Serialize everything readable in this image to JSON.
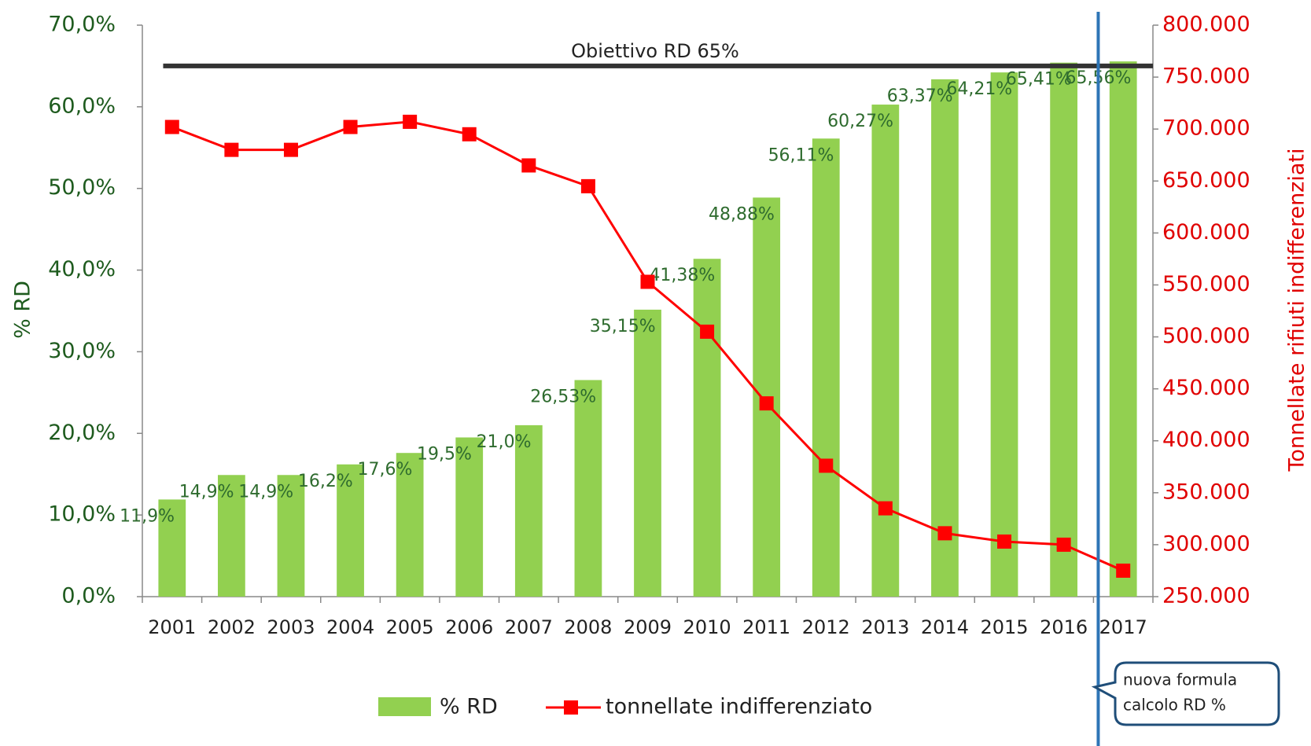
{
  "chart_data": {
    "type": "bar",
    "categories": [
      "2001",
      "2002",
      "2003",
      "2004",
      "2005",
      "2006",
      "2007",
      "2008",
      "2009",
      "2010",
      "2011",
      "2012",
      "2013",
      "2014",
      "2015",
      "2016",
      "2017"
    ],
    "series": [
      {
        "name": "% RD",
        "type": "bar",
        "color": "#92d050",
        "values": [
          11.9,
          14.9,
          14.9,
          16.2,
          17.6,
          19.5,
          21.0,
          26.53,
          35.15,
          41.38,
          48.88,
          56.11,
          60.27,
          63.37,
          64.21,
          65.41,
          65.56
        ],
        "value_labels": [
          "11,9%",
          "14,9%",
          "14,9%",
          "16,2%",
          "17,6%",
          "19,5%",
          "21,0%",
          "26,53%",
          "35,15%",
          "41,38%",
          "48,88%",
          "56,11%",
          "60,27%",
          "63,37%",
          "64,21%",
          "65,41%",
          "65,56%"
        ]
      },
      {
        "name": "tonnellate indifferenziato",
        "type": "line",
        "axis": "y2",
        "color": "#ff0000",
        "values": [
          702000,
          680000,
          680000,
          702000,
          707000,
          695000,
          665000,
          645000,
          553000,
          505000,
          436000,
          376000,
          335000,
          311000,
          303000,
          300000,
          275000
        ]
      }
    ],
    "ylabel": "% RD",
    "y2label": "Tonnellate rifiuti indifferenziati",
    "ylim": [
      0,
      70
    ],
    "yticks": [
      {
        "value": 0,
        "label": "0,0%"
      },
      {
        "value": 10,
        "label": "10,0%"
      },
      {
        "value": 20,
        "label": "20,0%"
      },
      {
        "value": 30,
        "label": "30,0%"
      },
      {
        "value": 40,
        "label": "40,0%"
      },
      {
        "value": 50,
        "label": "50,0%"
      },
      {
        "value": 60,
        "label": "60,0%"
      },
      {
        "value": 70,
        "label": "70,0%"
      }
    ],
    "y2lim": [
      250000,
      800000
    ],
    "y2ticks": [
      {
        "value": 250000,
        "label": "250.000"
      },
      {
        "value": 300000,
        "label": "300.000"
      },
      {
        "value": 350000,
        "label": "350.000"
      },
      {
        "value": 400000,
        "label": "400.000"
      },
      {
        "value": 450000,
        "label": "450.000"
      },
      {
        "value": 500000,
        "label": "500.000"
      },
      {
        "value": 550000,
        "label": "550.000"
      },
      {
        "value": 600000,
        "label": "600.000"
      },
      {
        "value": 650000,
        "label": "650.000"
      },
      {
        "value": 700000,
        "label": "700.000"
      },
      {
        "value": 750000,
        "label": "750.000"
      },
      {
        "value": 800000,
        "label": "800.000"
      }
    ],
    "target": {
      "value": 65,
      "label": "Obiettivo  RD 65%"
    },
    "annotation": [
      "nuova formula",
      "calcolo RD %"
    ],
    "legend": "bottom"
  }
}
